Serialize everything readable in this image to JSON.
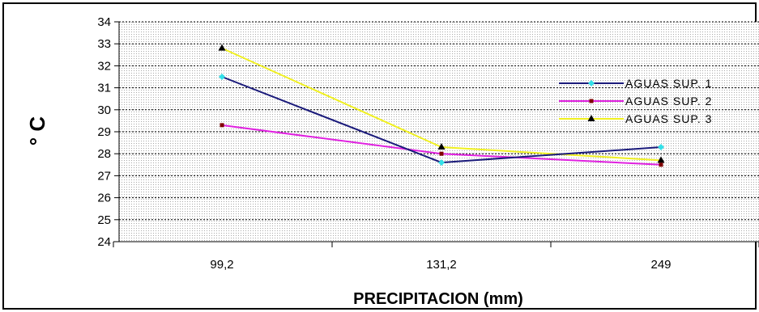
{
  "chart_data": {
    "type": "line",
    "title": "",
    "xlabel": "PRECIPITACION (mm)",
    "ylabel": "° C",
    "categories": [
      "99,2",
      "131,2",
      "249"
    ],
    "ylim": [
      24,
      34
    ],
    "yticks": [
      24,
      25,
      26,
      27,
      28,
      29,
      30,
      31,
      32,
      33,
      34
    ],
    "grid": "dotted",
    "legend_position": "right",
    "series": [
      {
        "name": "AGUAS SUP. 1",
        "values": [
          31.5,
          27.6,
          28.3
        ],
        "color": "#1a1a7a",
        "marker": "diamond",
        "marker_color": "#33e0e8"
      },
      {
        "name": "AGUAS SUP. 2",
        "values": [
          29.3,
          28.0,
          27.5
        ],
        "color": "#e020e0",
        "marker": "square",
        "marker_color": "#800000"
      },
      {
        "name": "AGUAS SUP. 3",
        "values": [
          32.8,
          28.3,
          27.7
        ],
        "color": "#f0f020",
        "marker": "triangle",
        "marker_color": "#000000"
      }
    ]
  }
}
